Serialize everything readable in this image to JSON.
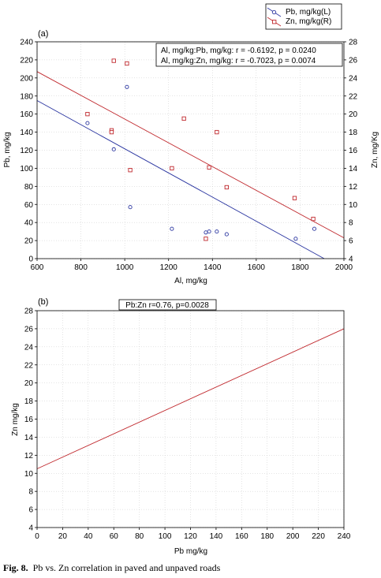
{
  "chart_data": [
    {
      "type": "scatter",
      "panel_label": "(a)",
      "xlabel": "Al, mg/kg",
      "ylabel_left": "Pb, mg/kg",
      "ylabel_right": "Zn, mg/Kg",
      "xlim": [
        600,
        2000
      ],
      "ylim_left": [
        0,
        240
      ],
      "ylim_right": [
        4,
        28
      ],
      "x_ticks": [
        600,
        800,
        1000,
        1200,
        1400,
        1600,
        1800,
        2000
      ],
      "y_left_ticks": [
        0,
        20,
        40,
        60,
        80,
        100,
        120,
        140,
        160,
        180,
        200,
        220,
        240
      ],
      "y_right_ticks": [
        4,
        6,
        8,
        10,
        12,
        14,
        16,
        18,
        20,
        22,
        24,
        26,
        28
      ],
      "legend": [
        "Pb, mg/kg(L)",
        "Zn, mg/kg(R)"
      ],
      "legend_position": "top-right, outside",
      "annotations": [
        "Al, mg/kg:Pb, mg/kg:   r = -0.6192, p = 0.0240",
        "Al, mg/kg:Zn, mg/kg:   r = -0.7023, p = 0.0074"
      ],
      "series": [
        {
          "name": "Pb, mg/kg(L)",
          "axis": "left",
          "marker": "circle",
          "color": "#2a35a0",
          "points": [
            [
              830,
              150
            ],
            [
              950,
              121
            ],
            [
              1010,
              190
            ],
            [
              1025,
              57
            ],
            [
              1215,
              33
            ],
            [
              1370,
              29
            ],
            [
              1385,
              30
            ],
            [
              1420,
              30
            ],
            [
              1465,
              27
            ],
            [
              1780,
              22
            ],
            [
              1865,
              33
            ]
          ],
          "fit": [
            [
              600,
              175
            ],
            [
              1910,
              0
            ]
          ]
        },
        {
          "name": "Zn, mg/kg(R)",
          "axis": "right",
          "marker": "square",
          "color": "#c0282d",
          "points": [
            [
              830,
              20
            ],
            [
              940,
              18.2
            ],
            [
              940,
              18
            ],
            [
              950,
              25.9
            ],
            [
              1010,
              25.6
            ],
            [
              1025,
              13.8
            ],
            [
              1215,
              14
            ],
            [
              1270,
              19.5
            ],
            [
              1370,
              6.2
            ],
            [
              1385,
              14.1
            ],
            [
              1420,
              18
            ],
            [
              1465,
              11.9
            ],
            [
              1775,
              10.7
            ],
            [
              1860,
              8.4
            ]
          ],
          "fit": [
            [
              600,
              24.7
            ],
            [
              2000,
              6.3
            ]
          ]
        }
      ]
    },
    {
      "type": "line",
      "panel_label": "(b)",
      "xlabel": "Pb mg/kg",
      "ylabel": "Zn mg/kg",
      "xlim": [
        0,
        240
      ],
      "ylim": [
        4,
        28
      ],
      "x_ticks": [
        0,
        20,
        40,
        60,
        80,
        100,
        120,
        140,
        160,
        180,
        200,
        220,
        240
      ],
      "y_ticks": [
        4,
        6,
        8,
        10,
        12,
        14,
        16,
        18,
        20,
        22,
        24,
        26,
        28
      ],
      "annotation": "Pb:Zn r=0.76, p=0.0028",
      "series": [
        {
          "color": "#c0282d",
          "points": [
            [
              0,
              10.5
            ],
            [
              240,
              26
            ]
          ]
        }
      ]
    }
  ],
  "caption": {
    "label": "Fig. 8.",
    "text": "Pb vs. Zn correlation in paved and unpaved roads"
  }
}
